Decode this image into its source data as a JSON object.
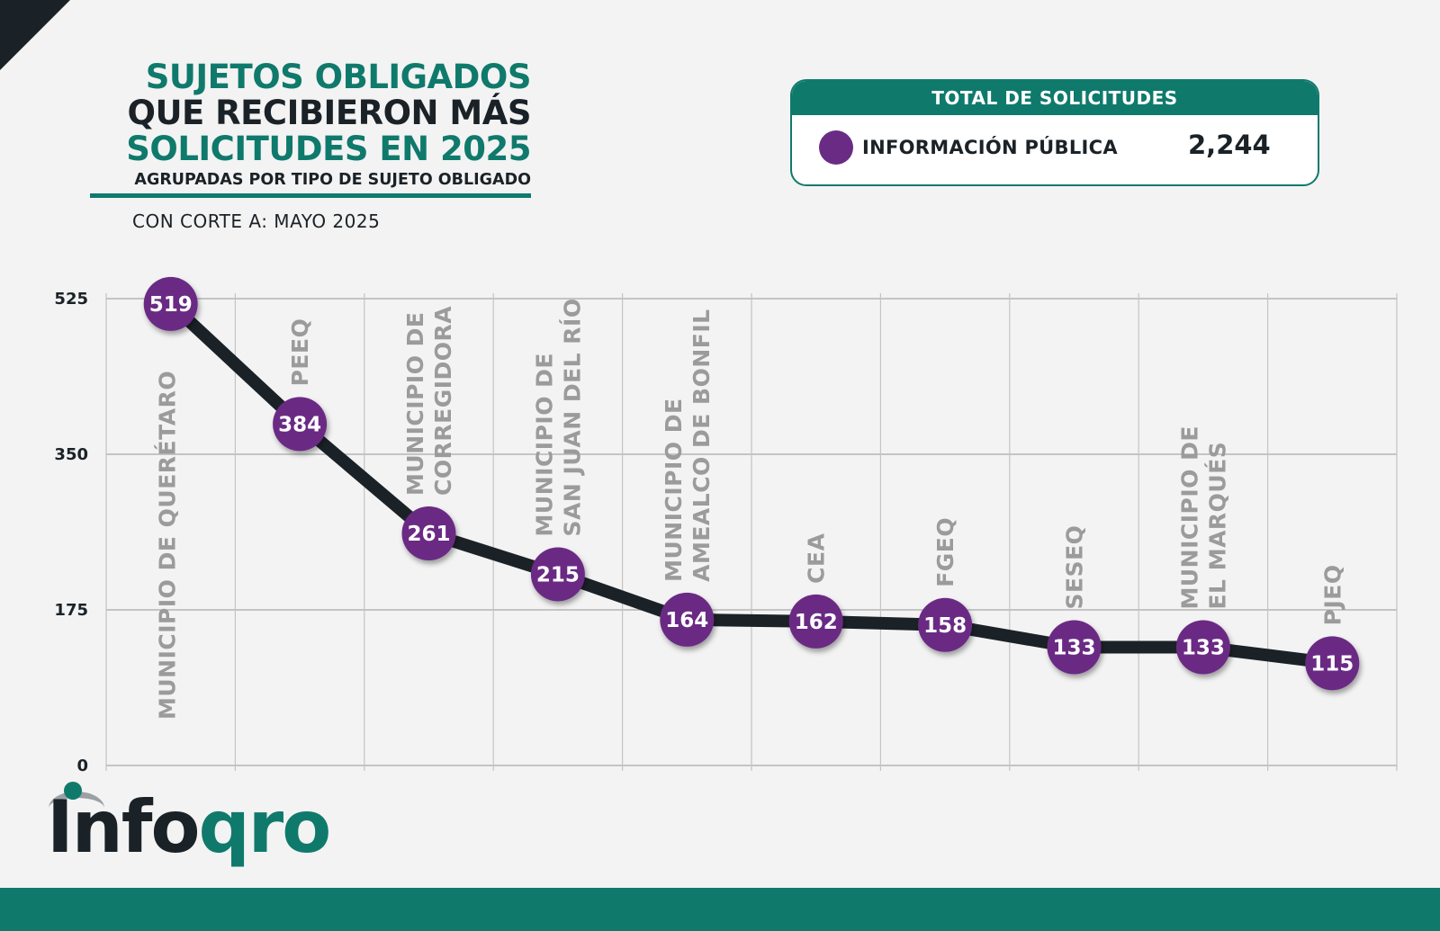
{
  "header": {
    "title_line1": "SUJETOS OBLIGADOS",
    "title_line2": "QUE RECIBIERON MÁS",
    "title_line3": "SOLICITUDES EN 2025",
    "subtitle": "AGRUPADAS POR TIPO DE SUJETO OBLIGADO",
    "cutoff": "CON CORTE A: MAYO 2025"
  },
  "total_card": {
    "header": "TOTAL DE SOLICITUDES",
    "legend_label": "INFORMACIÓN PÚBLICA",
    "legend_value": "2,244"
  },
  "logo": {
    "part1": "Info",
    "part2": "qro"
  },
  "colors": {
    "teal": "#0f7a6c",
    "dark": "#1b2227",
    "purple": "#6a2b84",
    "category_label": "#9b9b9b"
  },
  "chart_data": {
    "type": "line",
    "categories": [
      [
        "MUNICIPIO DE QUERÉTARO"
      ],
      [
        "PEEQ"
      ],
      [
        "MUNICIPIO DE",
        "CORREGIDORA"
      ],
      [
        "MUNICIPIO DE",
        "SAN JUAN DEL RÍO"
      ],
      [
        "MUNICIPIO DE",
        "AMEALCO DE BONFIL"
      ],
      [
        "CEA"
      ],
      [
        "FGEQ"
      ],
      [
        "SESEQ"
      ],
      [
        "MUNICIPIO DE",
        "EL MARQUÉS"
      ],
      [
        "PJEQ"
      ]
    ],
    "series": [
      {
        "name": "INFORMACIÓN PÚBLICA",
        "values": [
          519,
          384,
          261,
          215,
          164,
          162,
          158,
          133,
          133,
          115
        ]
      }
    ],
    "ylim": [
      0,
      525
    ],
    "yticks": [
      0,
      175,
      350,
      525
    ],
    "grid": true
  }
}
